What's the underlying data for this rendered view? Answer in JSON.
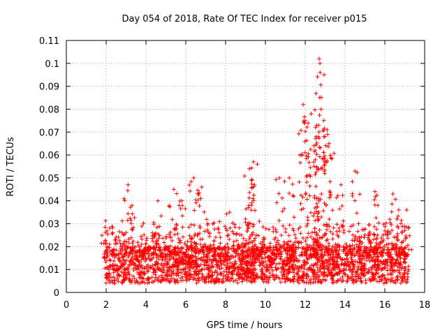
{
  "chart_data": {
    "type": "scatter",
    "title": "Day 054 of 2018, Rate Of TEC Index for receiver p015",
    "xlabel": "GPS time / hours",
    "ylabel": "ROTI / TECUs",
    "xlim": [
      0,
      18
    ],
    "ylim": [
      0,
      0.11
    ],
    "xticks": [
      0,
      2,
      4,
      6,
      8,
      10,
      12,
      14,
      16,
      18
    ],
    "xtick_labels": [
      "0",
      "2",
      "4",
      "6",
      "8",
      "10",
      "12",
      "14",
      "16",
      "18"
    ],
    "yticks": [
      0,
      0.01,
      0.02,
      0.03,
      0.04,
      0.05,
      0.06,
      0.07,
      0.08,
      0.09,
      0.1,
      0.11
    ],
    "ytick_labels": [
      "0",
      "0.01",
      "0.02",
      "0.03",
      "0.04",
      "0.05",
      "0.06",
      "0.07",
      "0.08",
      "0.09",
      "0.1",
      "0.11"
    ],
    "grid": true,
    "marker": "+",
    "color": "#ff0000",
    "series": [
      {
        "name": "ROTI p015",
        "x_range": [
          1.9,
          17.2
        ],
        "baseline_range": [
          0.004,
          0.02
        ],
        "notable_points": [
          {
            "x": 1.95,
            "y": 0.0285
          },
          {
            "x": 3.1,
            "y": 0.047
          },
          {
            "x": 3.3,
            "y": 0.038
          },
          {
            "x": 4.6,
            "y": 0.04
          },
          {
            "x": 5.4,
            "y": 0.045
          },
          {
            "x": 5.8,
            "y": 0.04
          },
          {
            "x": 6.4,
            "y": 0.05
          },
          {
            "x": 6.8,
            "y": 0.046
          },
          {
            "x": 8.2,
            "y": 0.035
          },
          {
            "x": 9.0,
            "y": 0.032
          },
          {
            "x": 9.2,
            "y": 0.054
          },
          {
            "x": 9.4,
            "y": 0.057
          },
          {
            "x": 9.45,
            "y": 0.047
          },
          {
            "x": 10.7,
            "y": 0.05
          },
          {
            "x": 11.2,
            "y": 0.05
          },
          {
            "x": 11.9,
            "y": 0.082
          },
          {
            "x": 12.0,
            "y": 0.075
          },
          {
            "x": 12.3,
            "y": 0.078
          },
          {
            "x": 12.55,
            "y": 0.068
          },
          {
            "x": 12.7,
            "y": 0.102
          },
          {
            "x": 12.75,
            "y": 0.096
          },
          {
            "x": 12.8,
            "y": 0.08
          },
          {
            "x": 13.1,
            "y": 0.071
          },
          {
            "x": 13.2,
            "y": 0.065
          },
          {
            "x": 13.8,
            "y": 0.047
          },
          {
            "x": 14.5,
            "y": 0.053
          },
          {
            "x": 15.5,
            "y": 0.044
          },
          {
            "x": 16.4,
            "y": 0.043
          },
          {
            "x": 16.7,
            "y": 0.036
          },
          {
            "x": 17.1,
            "y": 0.036
          }
        ]
      }
    ]
  }
}
